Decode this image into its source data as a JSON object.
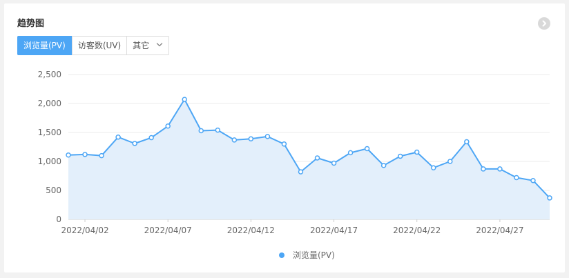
{
  "card": {
    "title": "趋势图"
  },
  "tabs": [
    {
      "label": "浏览量(PV)",
      "active": true
    },
    {
      "label": "访客数(UV)",
      "active": false
    },
    {
      "label": "其它",
      "active": false,
      "dropdown": true
    }
  ],
  "icons": {
    "expand": "chevron-right-circle-icon",
    "dropdown": "chevron-down-icon"
  },
  "colors": {
    "accent": "#4da6f5",
    "area_fill": "#e3effb",
    "grid": "#ebebeb"
  },
  "chart_data": {
    "type": "area",
    "title": "",
    "xlabel": "",
    "ylabel": "",
    "ylim": [
      0,
      2500
    ],
    "yticks": [
      "0",
      "500",
      "1,000",
      "1,500",
      "2,000",
      "2,500"
    ],
    "ytick_values": [
      0,
      500,
      1000,
      1500,
      2000,
      2500
    ],
    "xtick_labels": [
      "2022/04/02",
      "2022/04/07",
      "2022/04/12",
      "2022/04/17",
      "2022/04/22",
      "2022/04/27"
    ],
    "x": [
      "2022/04/01",
      "2022/04/02",
      "2022/04/03",
      "2022/04/04",
      "2022/04/05",
      "2022/04/06",
      "2022/04/07",
      "2022/04/08",
      "2022/04/09",
      "2022/04/10",
      "2022/04/11",
      "2022/04/12",
      "2022/04/13",
      "2022/04/14",
      "2022/04/15",
      "2022/04/16",
      "2022/04/17",
      "2022/04/18",
      "2022/04/19",
      "2022/04/20",
      "2022/04/21",
      "2022/04/22",
      "2022/04/23",
      "2022/04/24",
      "2022/04/25",
      "2022/04/26",
      "2022/04/27",
      "2022/04/28",
      "2022/04/29",
      "2022/04/30"
    ],
    "series": [
      {
        "name": "浏览量(PV)",
        "values": [
          1110,
          1120,
          1100,
          1420,
          1310,
          1410,
          1610,
          2070,
          1530,
          1540,
          1370,
          1390,
          1430,
          1300,
          820,
          1060,
          970,
          1150,
          1220,
          930,
          1090,
          1160,
          890,
          1000,
          1340,
          870,
          870,
          720,
          670,
          370
        ]
      }
    ],
    "grid": true,
    "legend": "bottom-center"
  }
}
